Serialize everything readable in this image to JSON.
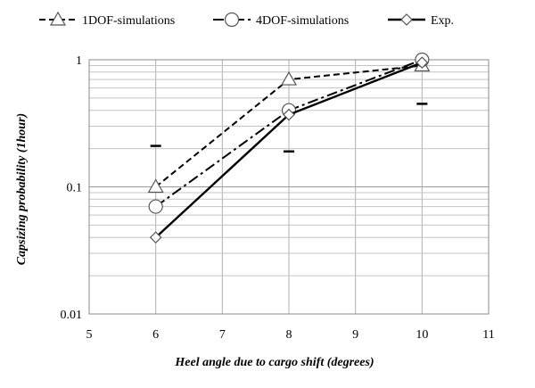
{
  "chart_data": {
    "type": "line",
    "title": "",
    "xlabel": "Heel angle due to cargo shift (degrees)",
    "ylabel": "Capsizing probability (1hour)",
    "xlim": [
      5,
      11
    ],
    "ylim": [
      0.01,
      1
    ],
    "yscale": "log",
    "grid": true,
    "legend_position": "top",
    "x_ticks": [
      "5",
      "6",
      "7",
      "8",
      "9",
      "10",
      "11"
    ],
    "y_ticks": [
      "0.01",
      "0.1",
      "1"
    ],
    "series": [
      {
        "name": "1DOF-simulations",
        "line_style": "dashed",
        "marker": "triangle",
        "x": [
          6,
          8,
          10
        ],
        "y": [
          0.1,
          0.7,
          0.9
        ]
      },
      {
        "name": "4DOF-simulations",
        "line_style": "dash-dot",
        "marker": "circle",
        "x": [
          6,
          8,
          10
        ],
        "y": [
          0.07,
          0.4,
          1.0
        ]
      },
      {
        "name": "Exp.",
        "line_style": "solid",
        "marker": "diamond",
        "x": [
          6,
          8,
          10
        ],
        "y": [
          0.04,
          0.37,
          0.95
        ]
      }
    ],
    "error_marks": [
      {
        "x": 6,
        "y": 0.21
      },
      {
        "x": 8,
        "y": 0.19
      },
      {
        "x": 10,
        "y": 0.45
      }
    ]
  }
}
